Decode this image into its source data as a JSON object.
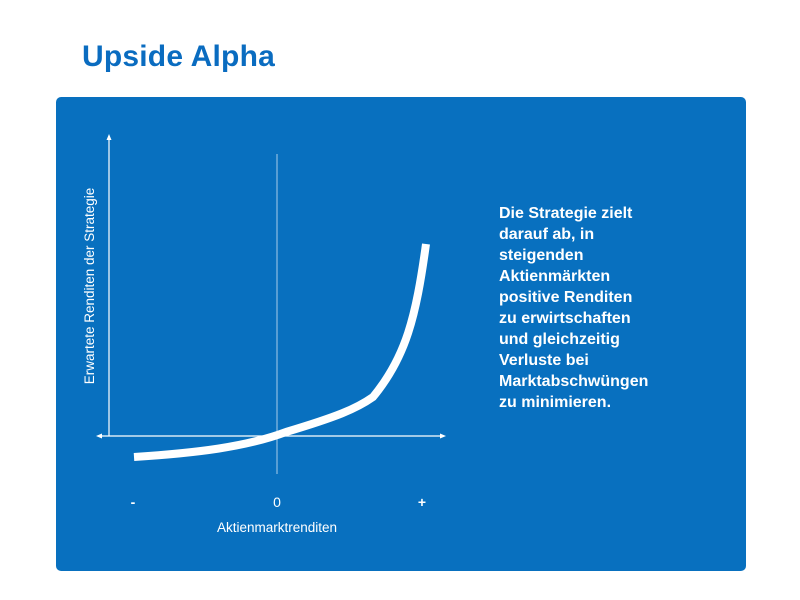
{
  "title": "Upside Alpha",
  "description": "Die Strategie zielt\ndarauf ab, in\nsteigenden\nAktienmärkten\npositive Renditen\nzu erwirtschaften\nund gleichzeitig\nVerluste bei\nMarktabschwüngen\nzu minimieren.",
  "colors": {
    "accent": "#0a6cc0",
    "panel": "#0870bf",
    "foreground": "#ffffff"
  },
  "chart_data": {
    "type": "line",
    "xlabel": "Aktienmarktrenditen",
    "ylabel": "Erwartete Renditen der Strategie",
    "x_ticks": [
      "-",
      "0",
      "+"
    ],
    "grid": false,
    "legend": "none"
  }
}
